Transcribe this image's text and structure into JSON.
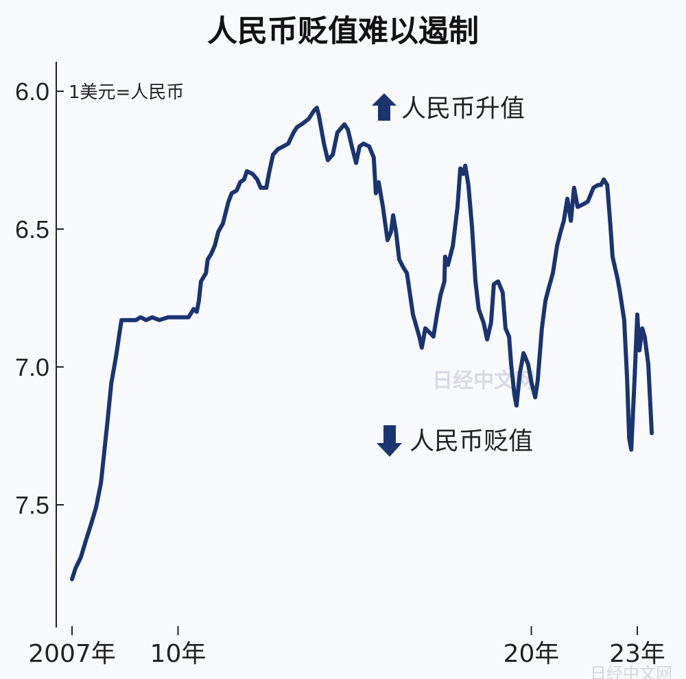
{
  "chart_data": {
    "type": "line",
    "title": "人民币贬值难以遏制",
    "unit_label": "1美元=人民币",
    "y_inverted": true,
    "ylim": [
      5.85,
      7.95
    ],
    "xlim": [
      2007,
      2023.5
    ],
    "y_ticks": [
      {
        "value": 6.0,
        "label": "6.0"
      },
      {
        "value": 6.5,
        "label": "6.5"
      },
      {
        "value": 7.0,
        "label": "7.0"
      },
      {
        "value": 7.5,
        "label": "7.5"
      }
    ],
    "x_ticks": [
      {
        "value": 2007,
        "label": "2007年"
      },
      {
        "value": 2010,
        "label": "10年"
      },
      {
        "value": 2020,
        "label": "20年"
      },
      {
        "value": 2023,
        "label": "23年"
      }
    ],
    "grid": false,
    "annotations": {
      "up": {
        "label": "人民币升值",
        "icon": "arrow-up-icon"
      },
      "down": {
        "label": "人民币贬值",
        "icon": "arrow-down-icon"
      }
    },
    "line_color": "#1b3470",
    "series": [
      {
        "x": [
          2007.0,
          2007.1,
          2007.25,
          2007.39,
          2007.54,
          2007.68,
          2007.82,
          2007.91,
          2008.01,
          2008.11,
          2008.18,
          2008.26,
          2008.34,
          2008.4,
          2008.5,
          2008.65,
          2008.81,
          2008.94,
          2009.1,
          2009.27,
          2009.47,
          2009.72,
          2010.01,
          2010.3,
          2010.44,
          2010.53,
          2010.59,
          2010.65,
          2010.79,
          2010.84,
          2010.94,
          2011.04,
          2011.14,
          2011.27,
          2011.43,
          2011.52,
          2011.66,
          2011.76,
          2011.87,
          2011.95,
          2012.11,
          2012.24,
          2012.34,
          2012.5,
          2012.57,
          2012.69,
          2012.83,
          2012.98,
          2013.12,
          2013.27,
          2013.37,
          2013.5,
          2013.7,
          2013.85,
          2013.93,
          2013.99,
          2014.13,
          2014.24,
          2014.38,
          2014.51,
          2014.71,
          2014.81,
          2014.92,
          2015.04,
          2015.14,
          2015.25,
          2015.41,
          2015.54,
          2015.6,
          2015.68,
          2015.8,
          2015.93,
          2016.03,
          2016.09,
          2016.17,
          2016.26,
          2016.38,
          2016.48,
          2016.65,
          2016.83,
          2016.9,
          2017.0,
          2017.16,
          2017.23,
          2017.33,
          2017.43,
          2017.54,
          2017.56,
          2017.64,
          2017.78,
          2017.91,
          2017.99,
          2018.07,
          2018.13,
          2018.22,
          2018.32,
          2018.42,
          2018.51,
          2018.65,
          2018.75,
          2018.86,
          2018.94,
          2019.06,
          2019.19,
          2019.27,
          2019.37,
          2019.43,
          2019.52,
          2019.58,
          2019.68,
          2019.78,
          2019.91,
          2020.01,
          2020.11,
          2020.18,
          2020.3,
          2020.4,
          2020.5,
          2020.61,
          2020.73,
          2020.83,
          2020.92,
          2021.02,
          2021.12,
          2021.21,
          2021.31,
          2021.47,
          2021.6,
          2021.76,
          2021.89,
          2021.97,
          2022.05,
          2022.15,
          2022.24,
          2022.3,
          2022.44,
          2022.51,
          2022.63,
          2022.71,
          2022.77,
          2022.83,
          2022.92,
          2023.0,
          2023.06,
          2023.14,
          2023.21,
          2023.31,
          2023.41
        ],
        "y": [
          7.77,
          7.73,
          7.69,
          7.63,
          7.57,
          7.51,
          7.42,
          7.31,
          7.19,
          7.06,
          7.01,
          6.95,
          6.88,
          6.83,
          6.83,
          6.83,
          6.83,
          6.82,
          6.83,
          6.82,
          6.83,
          6.82,
          6.82,
          6.82,
          6.79,
          6.8,
          6.76,
          6.69,
          6.66,
          6.61,
          6.59,
          6.56,
          6.51,
          6.48,
          6.4,
          6.37,
          6.36,
          6.33,
          6.32,
          6.29,
          6.3,
          6.32,
          6.35,
          6.35,
          6.3,
          6.23,
          6.21,
          6.2,
          6.19,
          6.15,
          6.13,
          6.12,
          6.1,
          6.07,
          6.06,
          6.09,
          6.19,
          6.25,
          6.23,
          6.15,
          6.12,
          6.14,
          6.2,
          6.26,
          6.2,
          6.19,
          6.2,
          6.24,
          6.37,
          6.33,
          6.42,
          6.54,
          6.51,
          6.45,
          6.51,
          6.61,
          6.64,
          6.66,
          6.81,
          6.89,
          6.93,
          6.86,
          6.88,
          6.89,
          6.81,
          6.74,
          6.69,
          6.6,
          6.63,
          6.56,
          6.42,
          6.28,
          6.3,
          6.27,
          6.34,
          6.49,
          6.69,
          6.79,
          6.84,
          6.9,
          6.84,
          6.7,
          6.69,
          6.73,
          6.86,
          6.89,
          6.99,
          7.1,
          7.14,
          7.02,
          6.95,
          6.99,
          7.06,
          7.11,
          7.05,
          6.86,
          6.76,
          6.71,
          6.66,
          6.56,
          6.51,
          6.47,
          6.39,
          6.47,
          6.35,
          6.42,
          6.41,
          6.4,
          6.35,
          6.34,
          6.34,
          6.32,
          6.34,
          6.49,
          6.6,
          6.68,
          6.73,
          6.83,
          7.04,
          7.26,
          7.3,
          7.05,
          6.81,
          6.94,
          6.86,
          6.89,
          6.99,
          7.24
        ]
      }
    ]
  },
  "watermarks": [
    "日经中文网",
    "日经中文网"
  ]
}
